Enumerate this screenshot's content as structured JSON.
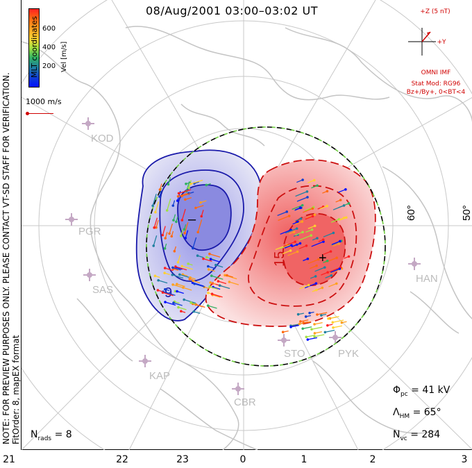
{
  "title": "08/Aug/2001 03:00–03:02 UT",
  "side_notes": {
    "preview": "NOTE: FOR PREVIEW PURPOSES ONLY. PLEASE CONTACT VT-SD STAFF FOR VERIFICATION.",
    "fit": "FitOrder: 8, mapEX format",
    "coords": "MLT coordinates"
  },
  "colorbar": {
    "label": "Vel [m/s]",
    "ticks": [
      "600",
      "400",
      "200"
    ],
    "colors": [
      "#ff2020",
      "#ff6a10",
      "#ffa020",
      "#ffd030",
      "#a0e040",
      "#30b060",
      "#2080a0",
      "#1040d0",
      "#0010ff"
    ]
  },
  "scale_vector": "1000 m/s",
  "imf": {
    "z_label": "+Z (5 nT)",
    "y_label": "+Y",
    "source": "OMNI IMF",
    "model": "Stat Mod: RG96",
    "condition": "Bz+/By+, 0<BT<4"
  },
  "latitude_labels": [
    "60°",
    "50°"
  ],
  "stations": [
    "KOD",
    "PGR",
    "SAS",
    "KAP",
    "CBR",
    "HAN",
    "STO",
    "PYK"
  ],
  "contour_labels": [
    "9",
    "15"
  ],
  "markers": {
    "min": "–",
    "max": "+"
  },
  "stats": {
    "phi_pc": {
      "symbol": "Φ",
      "sub": "pc",
      "value": "= 41 kV"
    },
    "lambda_hm": {
      "symbol": "Λ",
      "sub": "HM",
      "value": "= 65°"
    },
    "n_vc": {
      "symbol": "N",
      "sub": "vc",
      "value": "= 284"
    },
    "n_rads": {
      "symbol": "N",
      "sub": "rads",
      "value": "= 8"
    }
  },
  "mlt_labels": [
    "21",
    "22",
    "23",
    "0",
    "1",
    "2",
    "3"
  ],
  "colors": {
    "negative_cell": "#1a1aaa",
    "positive_cell": "#cc1010",
    "grid": "#c8c8c8",
    "imf": "#d00000"
  }
}
